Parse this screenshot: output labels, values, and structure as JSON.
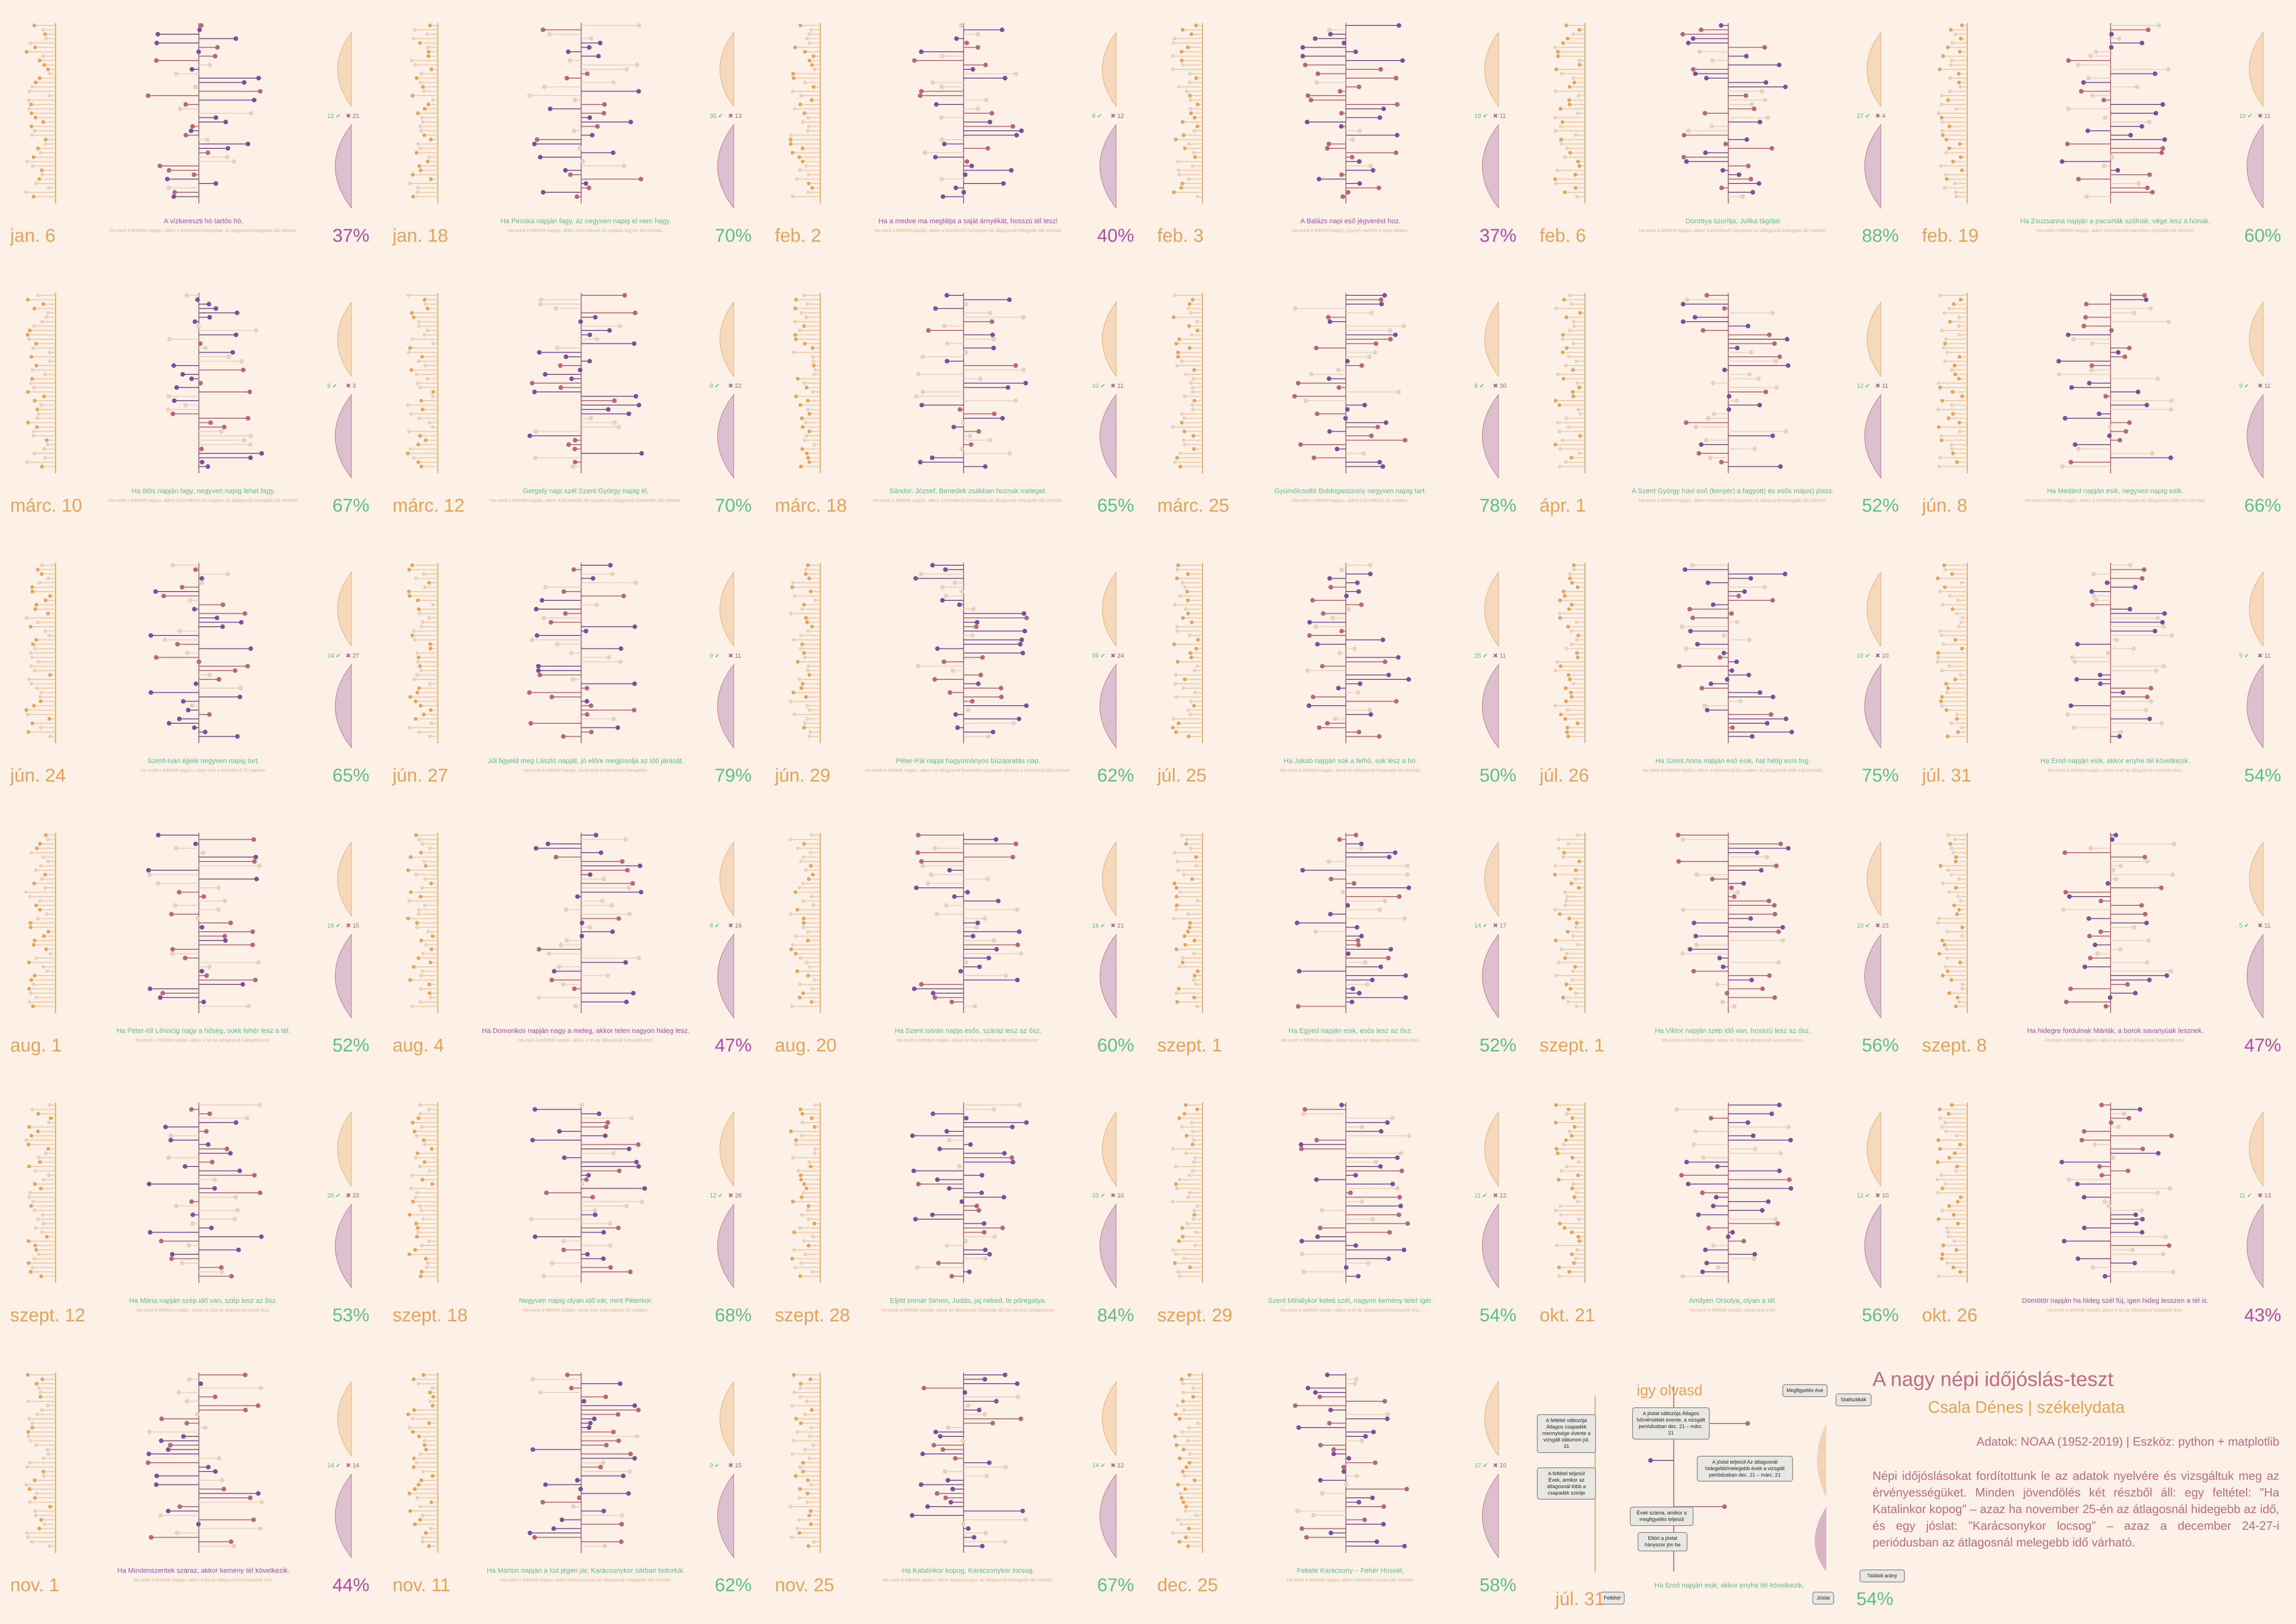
{
  "colors": {
    "bg": "#fdf1e7",
    "orange": "#e8a358",
    "purple": "#7a4f9c",
    "rose": "#b9667a",
    "beige": "#e6d2c1",
    "green": "#5fbf8b",
    "magenta": "#b24fa8"
  },
  "info": {
    "title": "A nagy népi időjóslás-teszt",
    "author": "Csala Dénes | székelydata",
    "source": "Adatok: NOAA (1952-2019) | Eszköz: python + matplotlib",
    "description": "Népi időjóslásokat fordítottunk le az adatok nyelvére és vizsgáltuk meg az érvényességüket. Minden jövendölés két részből áll: egy feltétel: \"Ha Katalinkor kopog\" – azaz ha november 25-én az átlagosnál hidegebb az idő, és egy jóslat: \"Karácsonykor locsog\" – azaz a december 24-27-i periódusban az átlagosnál melegebb idő várható."
  },
  "legend": {
    "title": "igy olvasd",
    "date": "júl. 31",
    "pct": "54%",
    "saying": "Ha Ernő napján esik, akkor enyhe tél következik.",
    "boxes": [
      "Megfigyelés éve",
      "Statisztikák",
      "A feltétel változója Átlagos csapadék mennyisége évente a vizsgált dátumon júl. 31",
      "A jóslat változója Átlagos hőmérséklet évente, a vizsgált periódusban dec. 21 – márc. 21",
      "A feltétel teljesül Évek, amikor az átlagosnál több a csapadék szintje",
      "A jóslat teljesül Az átlagosnál hidegebb/melegebb évek a vizsgált periódusban dec. 21 – márc. 21",
      "Évek száma, amikor a megfigyelés teljesül",
      "Eltöri a jóslat hányszor jön be",
      "Feltétel",
      "Jóslat",
      "Találati arány"
    ]
  },
  "chart_data": [
    {
      "type": "lollipop",
      "date": "jan. 6",
      "hit_pct": "37%",
      "saying": "A vízkereszti hó tartós hó.",
      "note": "Ha esett a feltételt napján, akkor a következő hónapban az átlagosnál hidegebb idő várható.",
      "n_true": "12",
      "n_false": "21"
    },
    {
      "type": "lollipop",
      "date": "jan. 18",
      "hit_pct": "70%",
      "saying": "Ha Piroska napján fagy, az negyven napig el nem hagy.",
      "note": "Ha esett a feltételt napján, akkor a következő 40 napban fagyos idő várható.",
      "n_true": "30",
      "n_false": "13"
    },
    {
      "type": "lollipop",
      "date": "feb. 2",
      "hit_pct": "40%",
      "saying": "Ha a medve ma meglátja a saját árnyékát, hosszú tél lesz!",
      "note": "Ha esett a feltételt napján, akkor a következő hónapban az átlagosnál hidegebb idő várható.",
      "n_true": "8",
      "n_false": "12"
    },
    {
      "type": "lollipop",
      "date": "feb. 3",
      "hit_pct": "37%",
      "saying": "A Balázs napi eső jégverést hoz.",
      "note": "Ha esett a feltételt napján, jégeső várható a nyári időben.",
      "n_true": "19",
      "n_false": "11"
    },
    {
      "type": "lollipop",
      "date": "feb. 6",
      "hit_pct": "88%",
      "saying": "Dorottya szorítja, Julika tágítja!",
      "note": "Ha esett a feltételt napján, akkor a következő napokban az átlagosnál hidegebb idő várható.",
      "n_true": "27",
      "n_false": "4"
    },
    {
      "type": "lollipop",
      "date": "feb. 19",
      "hit_pct": "60%",
      "saying": "Ha Zsuzsanna napján a pacsirták szólnak, vége lesz a hónak.",
      "note": "Ha esett a feltételt napján, akkor a következő napokban enyhébb idő várható.",
      "n_true": "10",
      "n_false": "11"
    },
    {
      "type": "lollipop",
      "date": "márc. 10",
      "hit_pct": "67%",
      "saying": "Ha ötös napján fagy, negyven napig lehet fagy.",
      "note": "Ha esett a feltételt napján, akkor a következő 40 napban az átlagosnál hidegebb idő várható.",
      "n_true": "6",
      "n_false": "3"
    },
    {
      "type": "lollipop",
      "date": "márc. 12",
      "hit_pct": "70%",
      "saying": "Gergely napi szél Szent György napig él.",
      "note": "Ha esett a feltételt napján, akkor a következő 40 napban az átlagosnál szelesebb idő várható.",
      "n_true": "9",
      "n_false": "22"
    },
    {
      "type": "lollipop",
      "date": "márc. 18",
      "hit_pct": "65%",
      "saying": "Sándor, József, Benedek zsákban hoznak meleget.",
      "note": "Ha esett a feltételt napján, akkor a következő hónapban az átlagosnál melegebb idő várható.",
      "n_true": "10",
      "n_false": "11"
    },
    {
      "type": "lollipop",
      "date": "márc. 25",
      "hit_pct": "78%",
      "saying": "Gyümölcsoltó Boldogasszony negyven napig tart.",
      "note": "Ha esett a feltételt napján, akkor a következő 40 napban.",
      "n_true": "8",
      "n_false": "30"
    },
    {
      "type": "lollipop",
      "date": "ápr. 1",
      "hit_pct": "52%",
      "saying": "A Szent György havi eső (kenyér) a fagyott) és esős május) jössz.",
      "note": "Ha esett a feltételt napján, akkor a következő hónapban az átlagosnál hidegebb idő várható.",
      "n_true": "12",
      "n_false": "11"
    },
    {
      "type": "lollipop",
      "date": "jún. 8",
      "hit_pct": "66%",
      "saying": "Ha Medárd napján esik, negyven napig esik.",
      "note": "Ha esett a feltételt napján, akkor a következő 40 napban az átlagosnál több eső várható.",
      "n_true": "9",
      "n_false": "11"
    },
    {
      "type": "lollipop",
      "date": "jún. 24",
      "hit_pct": "65%",
      "saying": "Szent-Iván éjjele negyven napig tart.",
      "note": "Ha esett a feltételt napján, olyan lesz a következő 40 napban.",
      "n_true": "14",
      "n_false": "27"
    },
    {
      "type": "lollipop",
      "date": "jún. 27",
      "hit_pct": "79%",
      "saying": "Jól figyeld meg László napját, jó előre megjósolja az idő járását.",
      "note": "Ha esett a feltételt napján, olyan lesz a következő hónapban.",
      "n_true": "9",
      "n_false": "11"
    },
    {
      "type": "lollipop",
      "date": "jún. 29",
      "hit_pct": "62%",
      "saying": "Péter-Pál napja hagyományos búzaaratás nap.",
      "note": "Ha esett a feltételt napján, akkor az átlagosnál kevesebb csapadék várható a következő időszakban.",
      "n_true": "39",
      "n_false": "24"
    },
    {
      "type": "lollipop",
      "date": "júl. 25",
      "hit_pct": "50%",
      "saying": "Ha Jakab napján sok a felhő, sok lesz a hó.",
      "note": "Ha esett a feltételt napján, akkor az átlagosnál havasabb tél várható.",
      "n_true": "25",
      "n_false": "11"
    },
    {
      "type": "lollipop",
      "date": "júl. 26",
      "hit_pct": "75%",
      "saying": "Ha Szent Anna napján eső esik, hat hétig esni fog.",
      "note": "Ha esett a feltételt napján, akkor a következő 42 napban az átlagosnál több eső várható.",
      "n_true": "10",
      "n_false": "10"
    },
    {
      "type": "lollipop",
      "date": "júl. 31",
      "hit_pct": "54%",
      "saying": "Ha Ernő napján esik, akkor enyhe tél következik.",
      "note": "Ha esett a feltételt napján, akkor a tél az átlagosnál enyhébb lesz.",
      "n_true": "5",
      "n_false": "11"
    },
    {
      "type": "lollipop",
      "date": "aug. 1",
      "hit_pct": "52%",
      "saying": "Ha Péter-től Lőrincig nagy a hőség, sokk fehér lesz a tél.",
      "note": "Ha esett a feltételt napján, akkor a tél az átlagosnál hidegebb lesz.",
      "n_true": "16",
      "n_false": "15"
    },
    {
      "type": "lollipop",
      "date": "aug. 4",
      "hit_pct": "47%",
      "saying": "Ha Domonkos napján nagy a meleg, akkor telen nagyon hideg lesz.",
      "note": "Ha esett a feltételt napján, akkor a tél az átlagosnál hidegebb lesz.",
      "n_true": "8",
      "n_false": "16"
    },
    {
      "type": "lollipop",
      "date": "aug. 20",
      "hit_pct": "60%",
      "saying": "Ha Szent István napja esős, száraz lesz az ősz.",
      "note": "Ha esett a feltételt napján, akkor az ősz az átlagosnál szárazabb lesz.",
      "n_true": "16",
      "n_false": "21"
    },
    {
      "type": "lollipop",
      "date": "szept. 1",
      "hit_pct": "52%",
      "saying": "Ha Egyed napján esik, esős lesz az ősz.",
      "note": "Ha esett a feltételt napján, akkor az ősz az átlagosnál esősebb lesz.",
      "n_true": "14",
      "n_false": "17"
    },
    {
      "type": "lollipop",
      "date": "szept. 1",
      "hit_pct": "56%",
      "saying": "Ha Viktor napján szép idő van, hosszú lesz az ősz.",
      "note": "Ha esett a feltételt napján, akkor az ősz az átlagosnál hosszabb lesz.",
      "n_true": "10",
      "n_false": "23"
    },
    {
      "type": "lollipop",
      "date": "szept. 8",
      "hit_pct": "47%",
      "saying": "Ha hidegre fordulnak Máriák, a borok savanyúak lesznek.",
      "note": "Ha esett a feltételt napján, akkor az ősz az átlagosnál hidegebb lesz.",
      "n_true": "5",
      "n_false": "11"
    },
    {
      "type": "lollipop",
      "date": "szept. 12",
      "hit_pct": "53%",
      "saying": "Ha Mária napján szép idő van, szép lesz az ősz.",
      "note": "Ha esett a feltételt napján, akkor az ősz az átlagosnál szebb lesz.",
      "n_true": "20",
      "n_false": "23"
    },
    {
      "type": "lollipop",
      "date": "szept. 18",
      "hit_pct": "68%",
      "saying": "Negyven napig olyan idő vár, mint Péterkor.",
      "note": "Ha esett a feltételt napján, olyan lesz a következő 40 napban.",
      "n_true": "12",
      "n_false": "26"
    },
    {
      "type": "lollipop",
      "date": "szept. 28",
      "hit_pct": "84%",
      "saying": "Eljött immár Simon, Judás, jaj neked, te pőregatya.",
      "note": "Ha esett a feltételt napján, akkor az átlagosnál hidegebb idő jön az őszi hónapokban.",
      "n_true": "33",
      "n_false": "10"
    },
    {
      "type": "lollipop",
      "date": "szept. 29",
      "hit_pct": "54%",
      "saying": "Szent Mihálykor keleti szél, nagyon kemény telet ígér.",
      "note": "Ha esett a feltételt napján, akkor a tél az átlagosnál keményebb lesz.",
      "n_true": "11",
      "n_false": "12"
    },
    {
      "type": "lollipop",
      "date": "okt. 21",
      "hit_pct": "56%",
      "saying": "Amilyen Orsolya, olyan a tél.",
      "note": "Ha esett a feltételt napján, olyan lesz a tél.",
      "n_true": "12",
      "n_false": "10"
    },
    {
      "type": "lollipop",
      "date": "okt. 26",
      "hit_pct": "43%",
      "saying": "Dömötör napján ha hideg szél fúj, igen hideg lesszen a tél is.",
      "note": "Ha esett a feltételt napján, akkor a tél az átlagosnál hidegebb lesz.",
      "n_true": "11",
      "n_false": "13"
    },
    {
      "type": "lollipop",
      "date": "nov. 1",
      "hit_pct": "44%",
      "saying": "Ha Mindenszentek száraz, akkor kemény tél következik.",
      "note": "Ha esett a feltételt napján, akkor a tél az átlagosnál keményebb lesz.",
      "n_true": "14",
      "n_false": "14"
    },
    {
      "type": "lollipop",
      "date": "nov. 11",
      "hit_pct": "62%",
      "saying": "Ha Márton napján a lúd jégen jár, Karácsonykor sárban botorkál.",
      "note": "Ha esett a feltételt napján, akkor Karácsonykor az átlagosnál melegebb idő várható.",
      "n_true": "9",
      "n_false": "15"
    },
    {
      "type": "lollipop",
      "date": "nov. 25",
      "hit_pct": "67%",
      "saying": "Ha Katalinkor kopog, Karácsonykor locsog.",
      "note": "Ha esett a feltételt napján, akkor Karácsonykor az átlagosnál melegebb idő várható.",
      "n_true": "14",
      "n_false": "12"
    },
    {
      "type": "lollipop",
      "date": "dec. 25",
      "hit_pct": "58%",
      "saying": "Fekete Karácsony – Fehér Húsvét.",
      "note": "Ha esett a feltételt napján, akkor Húsvétkor havas idő várható.",
      "n_true": "17",
      "n_false": "10"
    }
  ]
}
